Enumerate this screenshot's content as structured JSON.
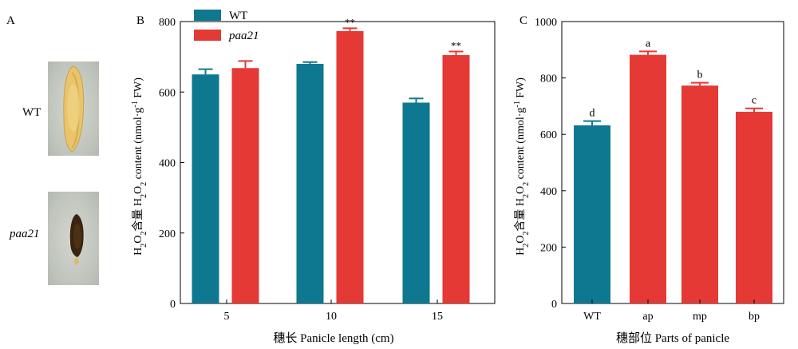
{
  "panel_a": {
    "label": "A",
    "samples": [
      {
        "name": "WT",
        "italic": false
      },
      {
        "name": "paa21",
        "italic": true
      }
    ]
  },
  "colors": {
    "wt": "#0e7890",
    "mutant": "#e53935",
    "error_bar_wt": "#0e7890",
    "error_bar_mutant": "#e53935"
  },
  "chart_data": [
    {
      "panel": "B",
      "type": "bar",
      "categories": [
        "5",
        "10",
        "15"
      ],
      "series": [
        {
          "name": "WT",
          "italic": false,
          "color": "#0e7890",
          "values": [
            650,
            680,
            570
          ],
          "errors": [
            15,
            5,
            12
          ]
        },
        {
          "name": "paa21",
          "italic": true,
          "color": "#e53935",
          "values": [
            668,
            773,
            705
          ],
          "errors": [
            20,
            8,
            10
          ]
        }
      ],
      "annotations": [
        {
          "category": "10",
          "series": "paa21",
          "text": "**"
        },
        {
          "category": "15",
          "series": "paa21",
          "text": "**"
        }
      ],
      "xlabel": "穗长 Panicle length (cm)",
      "ylabel": "H2O2含量 H2O2 content (nmol·g-1 FW)",
      "ylim": [
        0,
        800
      ],
      "yticks": [
        0,
        200,
        400,
        600,
        800
      ],
      "legend": "top-left",
      "grid": false
    },
    {
      "panel": "C",
      "type": "bar",
      "categories": [
        "WT",
        "ap",
        "mp",
        "bp"
      ],
      "values": [
        632,
        882,
        773,
        680
      ],
      "errors": [
        15,
        12,
        10,
        12
      ],
      "bar_colors": [
        "#0e7890",
        "#e53935",
        "#e53935",
        "#e53935"
      ],
      "letters": [
        "d",
        "a",
        "b",
        "c"
      ],
      "xlabel": "穗部位 Parts of panicle",
      "ylabel": "H2O2含量 H2O2 content (nmol·g-1 FW)",
      "ylim": [
        0,
        1000
      ],
      "yticks": [
        0,
        200,
        400,
        600,
        800,
        1000
      ],
      "grid": false
    }
  ]
}
